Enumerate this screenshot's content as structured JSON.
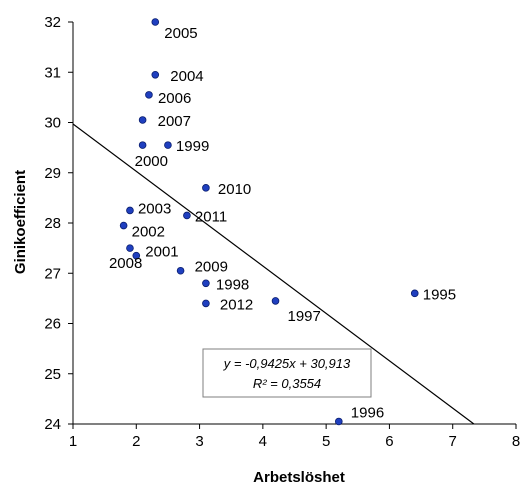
{
  "chart_data": {
    "type": "scatter",
    "xlabel": "Arbetslöshet",
    "ylabel": "Ginikoefficient",
    "xlim": [
      1,
      8
    ],
    "ylim": [
      24,
      32
    ],
    "xticks": [
      "1",
      "2",
      "3",
      "4",
      "5",
      "6",
      "7",
      "8"
    ],
    "yticks": [
      "24",
      "25",
      "26",
      "27",
      "28",
      "29",
      "30",
      "31",
      "32"
    ],
    "grid": false,
    "legend": "none",
    "point_color": "#1f3fbf",
    "points": [
      {
        "label": "1995",
        "x": 6.4,
        "y": 26.6
      },
      {
        "label": "1996",
        "x": 5.2,
        "y": 24.05
      },
      {
        "label": "1997",
        "x": 4.2,
        "y": 26.45
      },
      {
        "label": "1998",
        "x": 3.1,
        "y": 26.8
      },
      {
        "label": "1999",
        "x": 2.5,
        "y": 29.55
      },
      {
        "label": "2000",
        "x": 2.1,
        "y": 29.55
      },
      {
        "label": "2001",
        "x": 2.0,
        "y": 27.35
      },
      {
        "label": "2002",
        "x": 1.8,
        "y": 27.95
      },
      {
        "label": "2003",
        "x": 1.9,
        "y": 28.25
      },
      {
        "label": "2004",
        "x": 2.3,
        "y": 30.95
      },
      {
        "label": "2005",
        "x": 2.3,
        "y": 32.0
      },
      {
        "label": "2006",
        "x": 2.2,
        "y": 30.55
      },
      {
        "label": "2007",
        "x": 2.1,
        "y": 30.05
      },
      {
        "label": "2008",
        "x": 1.9,
        "y": 27.5
      },
      {
        "label": "2009",
        "x": 2.7,
        "y": 27.05
      },
      {
        "label": "2010",
        "x": 3.1,
        "y": 28.7
      },
      {
        "label": "2011",
        "x": 2.8,
        "y": 28.15
      },
      {
        "label": "2012",
        "x": 3.1,
        "y": 26.4
      }
    ],
    "trendline": {
      "slope": -0.9425,
      "intercept": 30.913
    },
    "annotation": {
      "equation": "y = -0,9425x + 30,913",
      "r_squared": "R² = 0,3554"
    }
  }
}
